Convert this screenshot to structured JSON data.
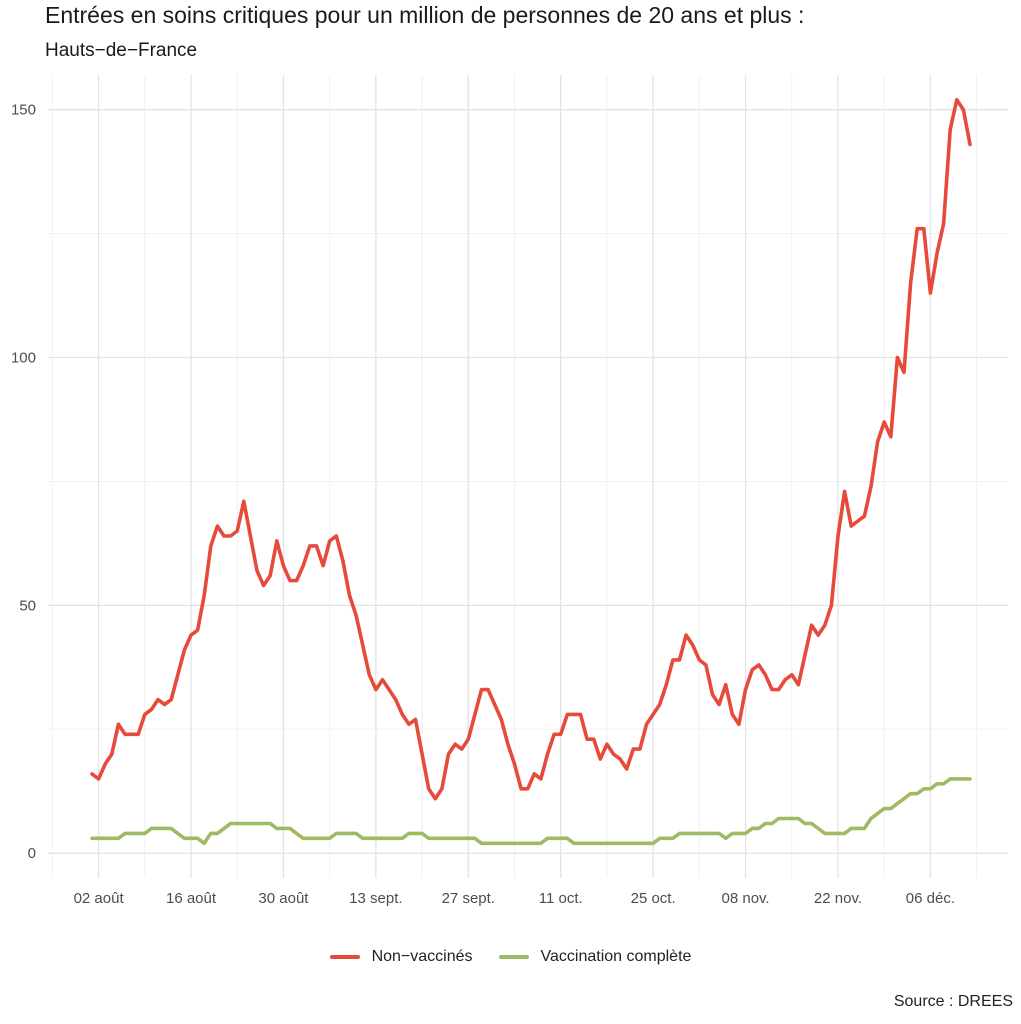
{
  "title": "Entrées en soins critiques pour un million de personnes de 20 ans et plus :",
  "subtitle": "Hauts−de−France",
  "caption": "Source : DREES",
  "chart_data": {
    "type": "line",
    "x_tick_labels": [
      "02 août",
      "16 août",
      "30 août",
      "13 sept.",
      "27 sept.",
      "11 oct.",
      "25 oct.",
      "08 nov.",
      "22 nov.",
      "06 déc."
    ],
    "y_ticks": [
      0,
      50,
      100,
      150
    ],
    "ylim": [
      -5,
      157
    ],
    "grid": true,
    "legend_position": "bottom",
    "series": [
      {
        "name": "Non−vaccinés",
        "color": "#e64a3b",
        "values": [
          16,
          15,
          18,
          20,
          26,
          24,
          24,
          24,
          28,
          29,
          31,
          30,
          31,
          36,
          41,
          44,
          45,
          52,
          62,
          66,
          64,
          64,
          65,
          71,
          64,
          57,
          54,
          56,
          63,
          58,
          55,
          55,
          58,
          62,
          62,
          58,
          63,
          64,
          59,
          52,
          48,
          42,
          36,
          33,
          35,
          33,
          31,
          28,
          26,
          27,
          20,
          13,
          11,
          13,
          20,
          22,
          21,
          23,
          28,
          33,
          33,
          30,
          27,
          22,
          18,
          13,
          13,
          16,
          15,
          20,
          24,
          24,
          28,
          28,
          28,
          23,
          23,
          19,
          22,
          20,
          19,
          17,
          21,
          21,
          26,
          28,
          30,
          34,
          39,
          39,
          44,
          42,
          39,
          38,
          32,
          30,
          34,
          28,
          26,
          33,
          37,
          38,
          36,
          33,
          33,
          35,
          36,
          34,
          40,
          46,
          44,
          46,
          50,
          64,
          73,
          66,
          67,
          68,
          74,
          83,
          87,
          84,
          100,
          97,
          115,
          126,
          126,
          113,
          121,
          127,
          146,
          152,
          150,
          143
        ]
      },
      {
        "name": "Vaccination complète",
        "color": "#9fba62",
        "values": [
          3,
          3,
          3,
          3,
          3,
          4,
          4,
          4,
          4,
          5,
          5,
          5,
          5,
          4,
          3,
          3,
          3,
          2,
          4,
          4,
          5,
          6,
          6,
          6,
          6,
          6,
          6,
          6,
          5,
          5,
          5,
          4,
          3,
          3,
          3,
          3,
          3,
          4,
          4,
          4,
          4,
          3,
          3,
          3,
          3,
          3,
          3,
          3,
          4,
          4,
          4,
          3,
          3,
          3,
          3,
          3,
          3,
          3,
          3,
          2,
          2,
          2,
          2,
          2,
          2,
          2,
          2,
          2,
          2,
          3,
          3,
          3,
          3,
          2,
          2,
          2,
          2,
          2,
          2,
          2,
          2,
          2,
          2,
          2,
          2,
          2,
          3,
          3,
          3,
          4,
          4,
          4,
          4,
          4,
          4,
          4,
          3,
          4,
          4,
          4,
          5,
          5,
          6,
          6,
          7,
          7,
          7,
          7,
          6,
          6,
          5,
          4,
          4,
          4,
          4,
          5,
          5,
          5,
          7,
          8,
          9,
          9,
          10,
          11,
          12,
          12,
          13,
          13,
          14,
          14,
          15,
          15,
          15,
          15
        ]
      }
    ]
  }
}
